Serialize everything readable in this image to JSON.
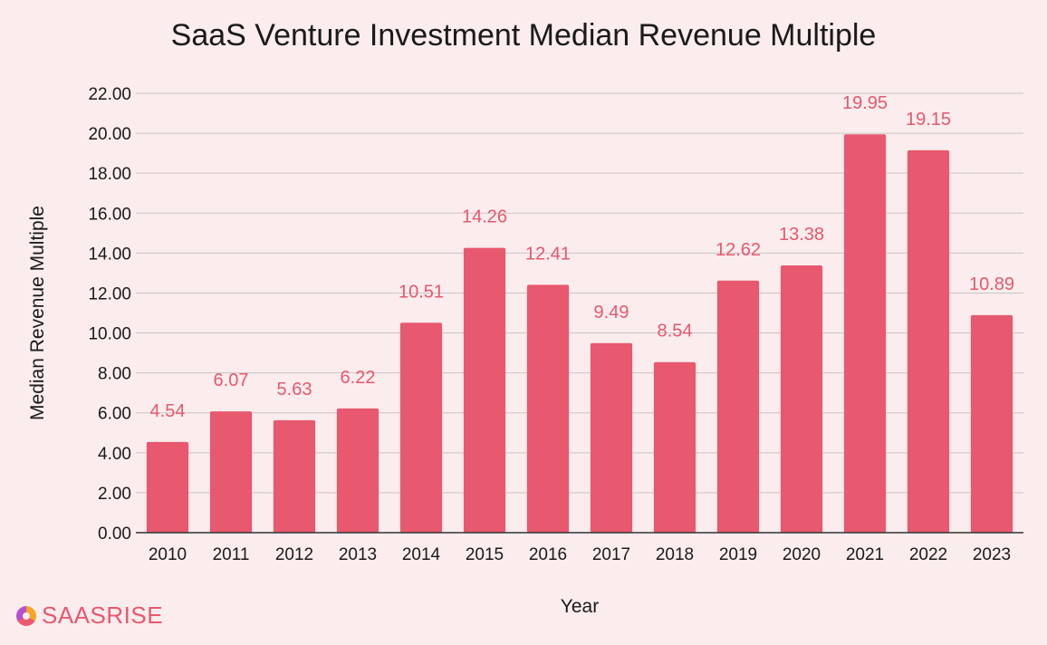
{
  "chart_data": {
    "type": "bar",
    "title": "SaaS Venture Investment Median Revenue Multiple",
    "xlabel": "Year",
    "ylabel": "Median Revenue Multiple",
    "categories": [
      "2010",
      "2011",
      "2012",
      "2013",
      "2014",
      "2015",
      "2016",
      "2017",
      "2018",
      "2019",
      "2020",
      "2021",
      "2022",
      "2023"
    ],
    "values": [
      4.54,
      6.07,
      5.63,
      6.22,
      10.51,
      14.26,
      12.41,
      9.49,
      8.54,
      12.62,
      13.38,
      19.95,
      19.15,
      10.89
    ],
    "data_labels": [
      "4.54",
      "6.07",
      "5.63",
      "6.22",
      "10.51",
      "14.26",
      "12.41",
      "9.49",
      "8.54",
      "12.62",
      "13.38",
      "19.95",
      "19.15",
      "10.89"
    ],
    "y_ticks": [
      "0.00",
      "2.00",
      "4.00",
      "6.00",
      "8.00",
      "10.00",
      "12.00",
      "14.00",
      "16.00",
      "18.00",
      "20.00",
      "22.00"
    ],
    "ylim": [
      0,
      22
    ],
    "grid": true,
    "legend": "none",
    "colors": {
      "bar": "#e8586e",
      "label": "#e8586e",
      "grid": "#c9c4c5",
      "axis": "#333333",
      "background": "#fbeced"
    }
  },
  "brand": {
    "logo_text": "SAASRISE",
    "logo_icon": "saasrise-logo-icon"
  }
}
